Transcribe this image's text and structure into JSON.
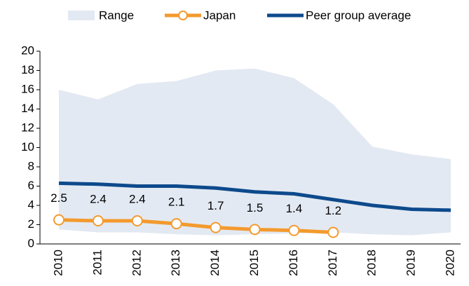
{
  "chart_data": {
    "type": "line",
    "categories": [
      "2010",
      "2011",
      "2012",
      "2013",
      "2014",
      "2015",
      "2016",
      "2017",
      "2018",
      "2019",
      "2020"
    ],
    "series": [
      {
        "name": "Range",
        "color": "#e3e9f2",
        "upper": [
          16,
          15,
          16.6,
          16.9,
          18,
          18.2,
          17.2,
          14.5,
          10.1,
          9.3,
          8.8
        ],
        "lower": [
          1.5,
          1.2,
          1.2,
          1.0,
          0.9,
          1.0,
          1.1,
          1.2,
          1.0,
          0.9,
          1.2
        ]
      },
      {
        "name": "Japan",
        "color": "#f39a2e",
        "values": [
          2.5,
          2.4,
          2.4,
          2.1,
          1.7,
          1.5,
          1.4,
          1.2,
          null,
          null,
          null
        ]
      },
      {
        "name": "Peer group average",
        "color": "#0d4a8c",
        "values": [
          6.3,
          6.2,
          6.0,
          6.0,
          5.8,
          5.4,
          5.2,
          4.6,
          4.0,
          3.6,
          3.5
        ]
      }
    ],
    "ylim": [
      0,
      20
    ],
    "yticks": [
      0,
      2,
      4,
      6,
      8,
      10,
      12,
      14,
      16,
      18,
      20
    ],
    "grid": false
  }
}
